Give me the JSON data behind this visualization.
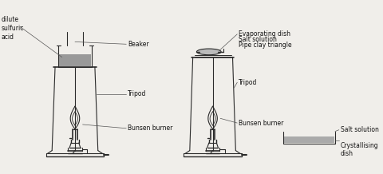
{
  "bg_color": "#f0eeea",
  "line_color": "#2a2a2a",
  "labels": {
    "dilute_sulfuric_acid": "dilute\nsulfuric\nacid",
    "beaker": "Beaker",
    "tripod1": "Tripod",
    "bunsen1": "Bunsen burner",
    "evaporating_dish": "Evaporating dish",
    "salt_solution_top": "Salt solution",
    "pipe_clay": "Pipe clay triangle",
    "tripod2": "Tripod",
    "bunsen2": "Bunsen burner",
    "salt_solution_bottom": "Salt solution",
    "crystallising": "Crystallising\ndish"
  },
  "font_size": 5.5
}
